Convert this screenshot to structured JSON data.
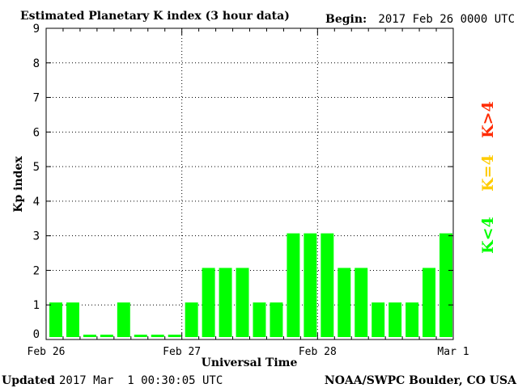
{
  "header": {
    "title": "Estimated Planetary K index (3 hour data)",
    "begin_label": "Begin:",
    "begin_value": "2017 Feb 26 0000 UTC"
  },
  "footer": {
    "updated_label": "Updated",
    "updated_value": "2017 Mar  1 00:30:05 UTC",
    "source": "NOAA/SWPC Boulder, CO USA"
  },
  "legend": {
    "above": "K>4",
    "equal": "K=4",
    "below": "K<4"
  },
  "colors": {
    "below": "#00ff00",
    "equal": "#ffcc00",
    "above": "#ff2a00",
    "axis": "#000000",
    "grid": "#000000"
  },
  "chart_data": {
    "type": "bar",
    "title": "Estimated Planetary K index (3 hour data)",
    "xlabel": "Universal Time",
    "ylabel": "Kp index",
    "ylim": [
      0,
      9
    ],
    "yticks": [
      0,
      1,
      2,
      3,
      4,
      5,
      6,
      7,
      8,
      9
    ],
    "x_tick_labels": [
      "Feb 26",
      "Feb 27",
      "Feb 28",
      "Mar 1"
    ],
    "grid": true,
    "bars_per_day": 8,
    "series": [
      {
        "values": [
          1,
          1,
          0,
          0,
          1,
          0,
          0,
          0,
          1,
          2,
          2,
          2,
          1,
          1,
          3,
          3,
          3,
          2,
          2,
          1,
          1,
          1,
          2,
          3
        ]
      }
    ]
  }
}
